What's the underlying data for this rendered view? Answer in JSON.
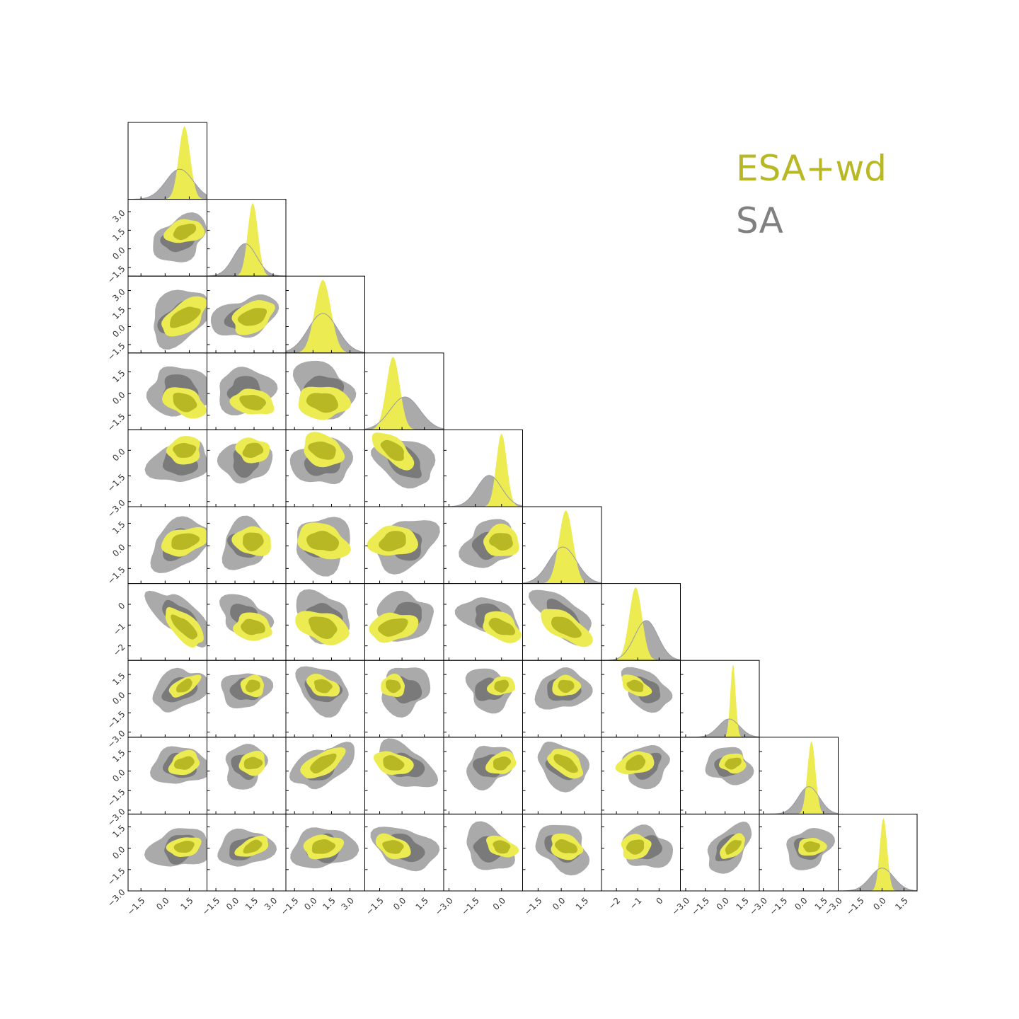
{
  "chart_data": {
    "type": "corner",
    "n_params": 10,
    "title": "",
    "legend": {
      "placement": "top-right",
      "entries": [
        {
          "name": "ESA+wd",
          "color": "#b8b824"
        },
        {
          "name": "SA",
          "color": "#808080"
        }
      ]
    },
    "series": [
      {
        "name": "ESA+wd",
        "fill_color": "#ecec52",
        "inner_color": "#b8b824",
        "edge_color": "#b8b824"
      },
      {
        "name": "SA",
        "fill_color": "#aaaaaa",
        "inner_color": "#7a7a7a",
        "edge_color": "#999999"
      }
    ],
    "y_tick_labels": [
      null,
      [
        "−1.5",
        "0.0",
        "1.5",
        "3.0"
      ],
      [
        "−1.5",
        "0.0",
        "1.5",
        "3.0"
      ],
      [
        "−1.5",
        "0.0",
        "1.5"
      ],
      [
        "−3.0",
        "−1.5",
        "0.0"
      ],
      [
        "−1.5",
        "0.0",
        "1.5"
      ],
      [
        "−2",
        "−1",
        "0"
      ],
      [
        "−3.0",
        "−1.5",
        "0.0",
        "1.5"
      ],
      [
        "−3.0",
        "−1.5",
        "0.0",
        "1.5"
      ],
      [
        "−3.0",
        "−1.5",
        "0.0",
        "1.5"
      ]
    ],
    "x_tick_labels": [
      [
        "−1.5",
        "0.0",
        "1.5"
      ],
      [
        "−1.5",
        "0.0",
        "1.5",
        "3.0"
      ],
      [
        "−1.5",
        "0.0",
        "1.5",
        "3.0"
      ],
      [
        "−1.5",
        "0.0",
        "1.5"
      ],
      [
        "−3.0",
        "−1.5",
        "0.0"
      ],
      [
        "−1.5",
        "0.0",
        "1.5"
      ],
      [
        "−2",
        "−1",
        "0"
      ],
      [
        "−3.0",
        "−1.5",
        "0.0",
        "1.5"
      ],
      [
        "−3.0",
        "−1.5",
        "0.0",
        "1.5"
      ],
      [
        "−3.0",
        "−1.5",
        "0.0",
        "1.5"
      ]
    ],
    "axis_ranges": [
      [
        -2.3,
        2.6
      ],
      [
        -2.2,
        4.0
      ],
      [
        -2.2,
        4.2
      ],
      [
        -2.5,
        2.8
      ],
      [
        -3.3,
        1.2
      ],
      [
        -2.5,
        2.6
      ],
      [
        -2.7,
        1.0
      ],
      [
        -3.4,
        2.6
      ],
      [
        -3.3,
        2.6
      ],
      [
        -3.0,
        2.4
      ]
    ],
    "marginals": [
      {
        "SA": {
          "mean": 0.9,
          "sd": 0.85
        },
        "ESA+wd": {
          "mean": 1.2,
          "sd": 0.35
        }
      },
      {
        "SA": {
          "mean": 0.8,
          "sd": 0.9
        },
        "ESA+wd": {
          "mean": 1.4,
          "sd": 0.4
        }
      },
      {
        "SA": {
          "mean": 0.8,
          "sd": 1.2
        },
        "ESA+wd": {
          "mean": 0.8,
          "sd": 0.65
        }
      },
      {
        "SA": {
          "mean": 0.2,
          "sd": 1.0
        },
        "ESA+wd": {
          "mean": -0.6,
          "sd": 0.45
        }
      },
      {
        "SA": {
          "mean": -0.7,
          "sd": 0.7
        },
        "ESA+wd": {
          "mean": 0.0,
          "sd": 0.3
        }
      },
      {
        "SA": {
          "mean": 0.1,
          "sd": 0.9
        },
        "ESA+wd": {
          "mean": 0.3,
          "sd": 0.45
        }
      },
      {
        "SA": {
          "mean": -0.6,
          "sd": 0.55
        },
        "ESA+wd": {
          "mean": -1.1,
          "sd": 0.3
        }
      },
      {
        "SA": {
          "mean": 0.3,
          "sd": 0.8
        },
        "ESA+wd": {
          "mean": 0.6,
          "sd": 0.2
        }
      },
      {
        "SA": {
          "mean": 0.4,
          "sd": 0.8
        },
        "ESA+wd": {
          "mean": 0.6,
          "sd": 0.3
        }
      },
      {
        "SA": {
          "mean": 0.0,
          "sd": 0.8
        },
        "ESA+wd": {
          "mean": 0.1,
          "sd": 0.25
        }
      }
    ],
    "correlations_SA": [
      [
        0,
        0,
        0,
        0,
        0,
        0,
        0,
        0,
        0,
        0
      ],
      [
        0.3,
        0,
        0,
        0,
        0,
        0,
        0,
        0,
        0,
        0
      ],
      [
        0.55,
        0.45,
        0,
        0,
        0,
        0,
        0,
        0,
        0,
        0
      ],
      [
        -0.3,
        -0.3,
        -0.2,
        0,
        0,
        0,
        0,
        0,
        0,
        0
      ],
      [
        0.2,
        0.1,
        -0.2,
        -0.6,
        0,
        0,
        0,
        0,
        0,
        0
      ],
      [
        0.3,
        0.1,
        -0.2,
        0.2,
        0.1,
        0,
        0,
        0,
        0,
        0
      ],
      [
        -0.8,
        -0.3,
        -0.3,
        0.3,
        -0.4,
        -0.6,
        0,
        0,
        0,
        0
      ],
      [
        0.6,
        0.1,
        -0.3,
        -0.1,
        0.1,
        -0.2,
        -0.4,
        0,
        0,
        0
      ],
      [
        0.2,
        0.1,
        0.6,
        -0.4,
        0.1,
        -0.6,
        0.4,
        0.2,
        0,
        0
      ],
      [
        0.3,
        0.4,
        0.3,
        -0.3,
        -0.3,
        -0.3,
        0.2,
        0.7,
        0.1,
        0
      ]
    ]
  }
}
